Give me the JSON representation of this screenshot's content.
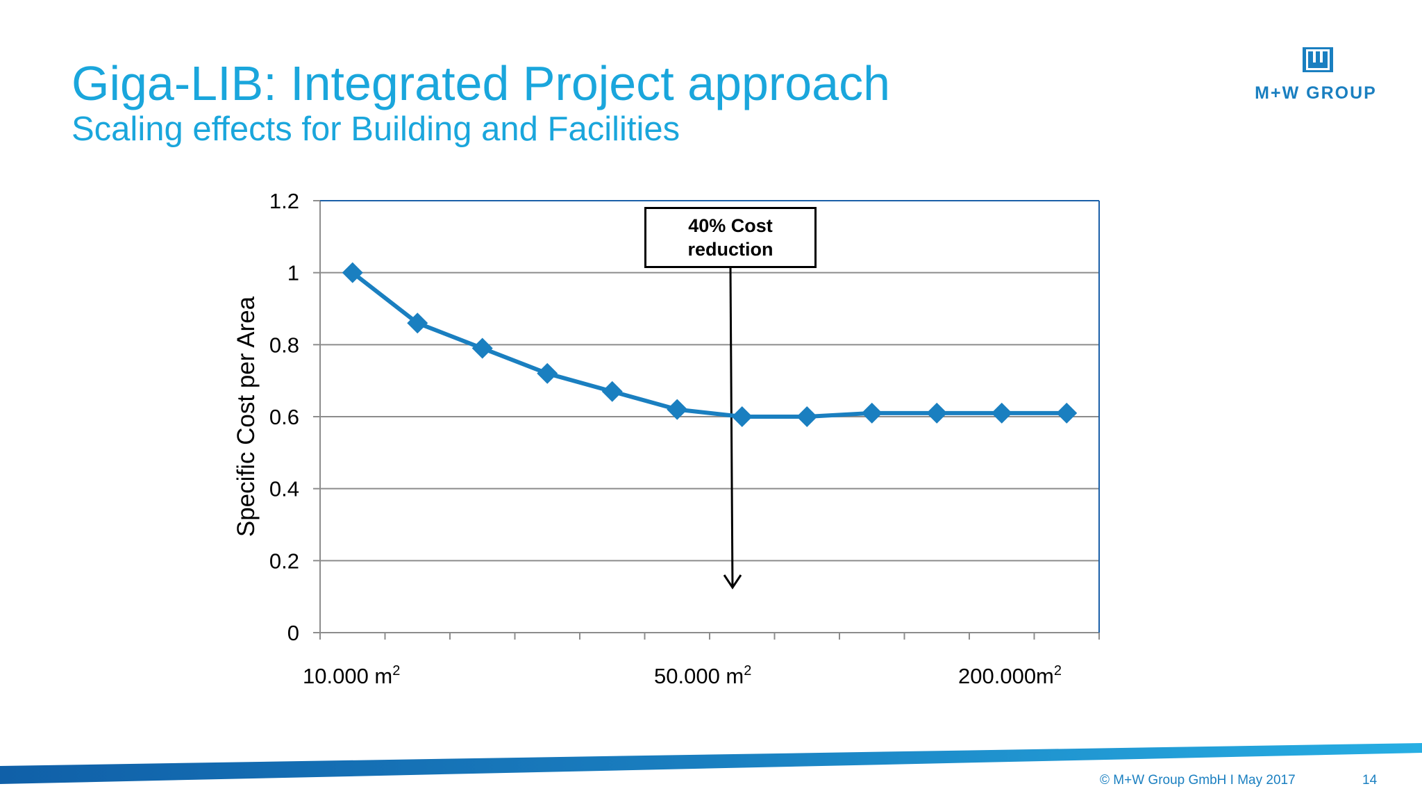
{
  "slide": {
    "title": "Giga-LIB: Integrated Project approach",
    "subtitle": "Scaling effects for Building and Facilities",
    "logo_text": "M+W GROUP",
    "footer": "© M+W Group GmbH I May 2017",
    "page_number": "14"
  },
  "colors": {
    "title": "#1aa6dc",
    "series": "#1a7fc0",
    "grid": "#8c8c8c",
    "footer_band": "#1a7fc0"
  },
  "chart_data": {
    "type": "line",
    "ylabel": "Specific Cost per Area",
    "ylim": [
      0,
      1.2
    ],
    "y_ticks": [
      "0",
      "0.2",
      "0.4",
      "0.6",
      "0.8",
      "1",
      "1.2"
    ],
    "x_labels": [
      {
        "base": "10.000 m",
        "sup": "2"
      },
      {
        "base": "50.000 m",
        "sup": "2"
      },
      {
        "base": "200.000m",
        "sup": "2"
      }
    ],
    "values": [
      1.0,
      0.86,
      0.79,
      0.72,
      0.67,
      0.62,
      0.6,
      0.6,
      0.61,
      0.61,
      0.61,
      0.61
    ],
    "marker": "diamond",
    "grid": true,
    "annotation": {
      "line1": "40% Cost",
      "line2": "reduction"
    }
  }
}
